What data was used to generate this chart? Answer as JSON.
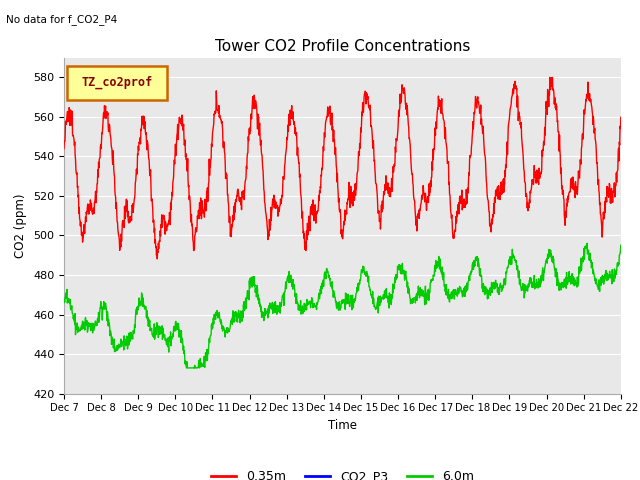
{
  "title": "Tower CO2 Profile Concentrations",
  "top_left_text": "No data for f_CO2_P4",
  "xlabel": "Time",
  "ylabel": "CO2 (ppm)",
  "ylim": [
    420,
    590
  ],
  "xlim_days": [
    0,
    15
  ],
  "legend_box_text": "TZ_co2prof",
  "legend_box_facecolor": "#ffff99",
  "legend_box_edgecolor": "#cc6600",
  "bg_color": "#e8e8e8",
  "grid_color": "#ffffff",
  "x_tick_labels": [
    "Dec 7",
    "Dec 8",
    "Dec 9",
    "Dec 10",
    "Dec 11",
    "Dec 12",
    "Dec 13",
    "Dec 14",
    "Dec 15",
    "Dec 16",
    "Dec 17",
    "Dec 18",
    "Dec 19",
    "Dec 20",
    "Dec 21",
    "Dec 22"
  ],
  "series": [
    {
      "label": "0.35m",
      "color": "#ff0000",
      "lw": 1.0
    },
    {
      "label": "CO2_P3",
      "color": "#0000ff",
      "lw": 1.0
    },
    {
      "label": "6.0m",
      "color": "#00cc00",
      "lw": 1.0
    }
  ],
  "figsize": [
    6.4,
    4.8
  ],
  "dpi": 100
}
